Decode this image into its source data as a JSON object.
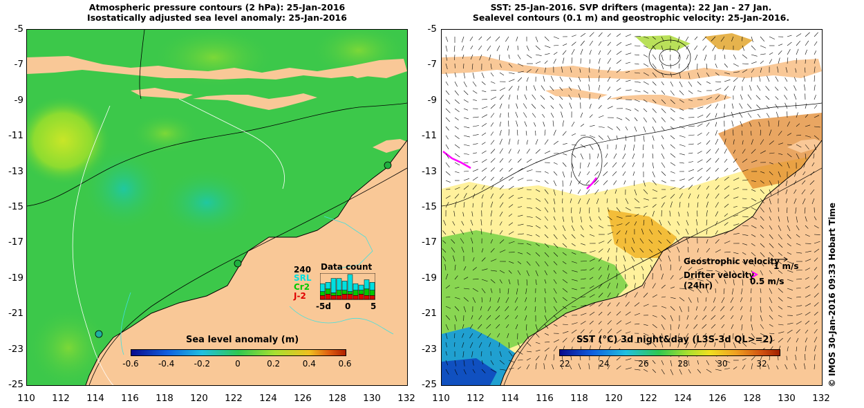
{
  "left_map": {
    "title_line1": "Atmospheric pressure contours (2 hPa): 25-Jan-2016",
    "title_line2": "Isostatically adjusted sea level anomaly: 25-Jan-2016",
    "colorbar_label": "Sea level anomaly (m)",
    "colorbar_ticks": [
      "-0.6",
      "-0.4",
      "-0.2",
      "0",
      "0.2",
      "0.4",
      "0.6"
    ],
    "data_count": {
      "title": "Data count",
      "max_label": "240",
      "series": [
        {
          "name": "SRL",
          "color": "#00e0e0"
        },
        {
          "name": "Cr2",
          "color": "#00c800"
        },
        {
          "name": "J-2",
          "color": "#e00000"
        }
      ],
      "axis_labels": [
        "-5d",
        "0",
        "5"
      ],
      "bars": [
        {
          "red": 0.15,
          "green": 0.15,
          "cyan": 0.3
        },
        {
          "red": 0.2,
          "green": 0.2,
          "cyan": 0.25
        },
        {
          "red": 0.15,
          "green": 0.1,
          "cyan": 0.55
        },
        {
          "red": 0.15,
          "green": 0.2,
          "cyan": 0.45
        },
        {
          "red": 0.2,
          "green": 0.15,
          "cyan": 0.35
        },
        {
          "red": 0.2,
          "green": 0.1,
          "cyan": 0.65
        },
        {
          "red": 0.15,
          "green": 0.2,
          "cyan": 0.25
        },
        {
          "red": 0.2,
          "green": 0.15,
          "cyan": 0.2
        },
        {
          "red": 0.15,
          "green": 0.25,
          "cyan": 0.35
        },
        {
          "red": 0.15,
          "green": 0.2,
          "cyan": 0.3
        }
      ]
    }
  },
  "right_map": {
    "title_line1": "SST: 25-Jan-2016. SVP drifters (magenta): 22 Jan - 27 Jan.",
    "title_line2": "Sealevel contours (0.1 m) and geostrophic velocity: 25-Jan-2016.",
    "colorbar_label": "SST (°C) 3d night&day (L3S-3d QL>=2)",
    "colorbar_ticks": [
      "22",
      "24",
      "26",
      "28",
      "30",
      "32"
    ],
    "legend": {
      "geo_label": "Geostrophic velocity",
      "geo_value": "1 m/s",
      "drifter_label": "Drifter velocity",
      "drifter_sub": "(24hr)",
      "drifter_value": "0.5 m/s"
    }
  },
  "axes": {
    "y_ticks": [
      "-5",
      "-7",
      "-9",
      "-11",
      "-13",
      "-15",
      "-17",
      "-19",
      "-21",
      "-23",
      "-25"
    ],
    "x_ticks": [
      "110",
      "112",
      "114",
      "116",
      "118",
      "120",
      "122",
      "124",
      "126",
      "128",
      "130",
      "132"
    ]
  },
  "copyright": "© IMOS 30-Jan-2016 09:33 Hobart Time",
  "colors": {
    "land": "#f9c897",
    "sea_green": "#3cc84a",
    "sst_white": "#ffffff",
    "drifter": "#ff00ff"
  }
}
